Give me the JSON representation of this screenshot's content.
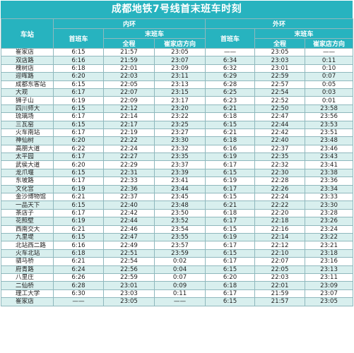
{
  "title": "成都地铁7号线首末班车时刻",
  "header": {
    "station": "车站",
    "inner_loop": "内环",
    "outer_loop": "外环",
    "first_train": "首班车",
    "last_train": "末班车",
    "full_loop": "全程",
    "toward_cuijiadian": "崔家店方向"
  },
  "rows": [
    {
      "station": "崔家店",
      "in_first": "6:15",
      "in_full": "21:57",
      "in_dir": "23:05",
      "out_first": "——",
      "out_full": "23:05",
      "out_dir": "——"
    },
    {
      "station": "双店路",
      "in_first": "6:16",
      "in_full": "21:59",
      "in_dir": "23:07",
      "out_first": "6:34",
      "out_full": "23:03",
      "out_dir": "0:11"
    },
    {
      "station": "槐树店",
      "in_first": "6:18",
      "in_full": "22:01",
      "in_dir": "23:09",
      "out_first": "6:32",
      "out_full": "23:01",
      "out_dir": "0:10"
    },
    {
      "station": "迎晖路",
      "in_first": "6:20",
      "in_full": "22:03",
      "in_dir": "23:11",
      "out_first": "6:29",
      "out_full": "22:59",
      "out_dir": "0:07"
    },
    {
      "station": "成都东客站",
      "in_first": "6:15",
      "in_full": "22:05",
      "in_dir": "23:13",
      "out_first": "6:28",
      "out_full": "22:57",
      "out_dir": "0:05"
    },
    {
      "station": "大观",
      "in_first": "6:17",
      "in_full": "22:07",
      "in_dir": "23:15",
      "out_first": "6:25",
      "out_full": "22:54",
      "out_dir": "0:03"
    },
    {
      "station": "狮子山",
      "in_first": "6:19",
      "in_full": "22:09",
      "in_dir": "23:17",
      "out_first": "6:23",
      "out_full": "22:52",
      "out_dir": "0:01"
    },
    {
      "station": "四川师大",
      "in_first": "6:15",
      "in_full": "22:12",
      "in_dir": "23:20",
      "out_first": "6:21",
      "out_full": "22:50",
      "out_dir": "23:58"
    },
    {
      "station": "琉璃场",
      "in_first": "6:17",
      "in_full": "22:14",
      "in_dir": "23:22",
      "out_first": "6:18",
      "out_full": "22:47",
      "out_dir": "23:56"
    },
    {
      "station": "三瓦窑",
      "in_first": "6:15",
      "in_full": "22:17",
      "in_dir": "23:25",
      "out_first": "6:15",
      "out_full": "22:44",
      "out_dir": "23:53"
    },
    {
      "station": "火车南站",
      "in_first": "6:17",
      "in_full": "22:19",
      "in_dir": "23:27",
      "out_first": "6:21",
      "out_full": "22:42",
      "out_dir": "23:51"
    },
    {
      "station": "神仙树",
      "in_first": "6:20",
      "in_full": "22:22",
      "in_dir": "23:30",
      "out_first": "6:18",
      "out_full": "22:40",
      "out_dir": "23:48"
    },
    {
      "station": "高朋大道",
      "in_first": "6:22",
      "in_full": "22:24",
      "in_dir": "23:32",
      "out_first": "6:16",
      "out_full": "22:37",
      "out_dir": "23:46"
    },
    {
      "station": "太平园",
      "in_first": "6:17",
      "in_full": "22:27",
      "in_dir": "23:35",
      "out_first": "6:19",
      "out_full": "22:35",
      "out_dir": "23:43"
    },
    {
      "station": "武侯大道",
      "in_first": "6:20",
      "in_full": "22:29",
      "in_dir": "23:37",
      "out_first": "6:17",
      "out_full": "22:32",
      "out_dir": "23:41"
    },
    {
      "station": "龙爪堰",
      "in_first": "6:15",
      "in_full": "22:31",
      "in_dir": "23:39",
      "out_first": "6:15",
      "out_full": "22:30",
      "out_dir": "23:38"
    },
    {
      "station": "东坡路",
      "in_first": "6:17",
      "in_full": "22:33",
      "in_dir": "23:41",
      "out_first": "6:19",
      "out_full": "22:28",
      "out_dir": "23:36"
    },
    {
      "station": "文化宫",
      "in_first": "6:19",
      "in_full": "22:36",
      "in_dir": "23:44",
      "out_first": "6:17",
      "out_full": "22:26",
      "out_dir": "23:34"
    },
    {
      "station": "金沙博物馆",
      "in_first": "6:21",
      "in_full": "22:37",
      "in_dir": "23:45",
      "out_first": "6:15",
      "out_full": "22:24",
      "out_dir": "23:33"
    },
    {
      "station": "一品天下",
      "in_first": "6:15",
      "in_full": "22:40",
      "in_dir": "23:48",
      "out_first": "6:21",
      "out_full": "22:22",
      "out_dir": "23:30"
    },
    {
      "station": "茶店子",
      "in_first": "6:17",
      "in_full": "22:42",
      "in_dir": "23:50",
      "out_first": "6:18",
      "out_full": "22:20",
      "out_dir": "23:28"
    },
    {
      "station": "花照壁",
      "in_first": "6:19",
      "in_full": "22:44",
      "in_dir": "23:52",
      "out_first": "6:17",
      "out_full": "22:18",
      "out_dir": "23:26"
    },
    {
      "station": "西南交大",
      "in_first": "6:21",
      "in_full": "22:46",
      "in_dir": "23:54",
      "out_first": "6:15",
      "out_full": "22:16",
      "out_dir": "23:24"
    },
    {
      "station": "九里堤",
      "in_first": "6:15",
      "in_full": "22:47",
      "in_dir": "23:55",
      "out_first": "6:19",
      "out_full": "22:14",
      "out_dir": "23:22"
    },
    {
      "station": "北站西二路",
      "in_first": "6:16",
      "in_full": "22:49",
      "in_dir": "23:57",
      "out_first": "6:17",
      "out_full": "22:12",
      "out_dir": "23:21"
    },
    {
      "station": "火车北站",
      "in_first": "6:18",
      "in_full": "22:51",
      "in_dir": "23:59",
      "out_first": "6:15",
      "out_full": "22:10",
      "out_dir": "23:18"
    },
    {
      "station": "驷马桥",
      "in_first": "6:21",
      "in_full": "22:54",
      "in_dir": "0:02",
      "out_first": "6:17",
      "out_full": "22:07",
      "out_dir": "23:16"
    },
    {
      "station": "府青路",
      "in_first": "6:24",
      "in_full": "22:56",
      "in_dir": "0:04",
      "out_first": "6:15",
      "out_full": "22:05",
      "out_dir": "23:13"
    },
    {
      "station": "八里庄",
      "in_first": "6:26",
      "in_full": "22:59",
      "in_dir": "0:07",
      "out_first": "6:20",
      "out_full": "22:03",
      "out_dir": "23:11"
    },
    {
      "station": "二仙桥",
      "in_first": "6:28",
      "in_full": "23:01",
      "in_dir": "0:09",
      "out_first": "6:18",
      "out_full": "22:01",
      "out_dir": "23:09"
    },
    {
      "station": "理工大学",
      "in_first": "6:30",
      "in_full": "23:03",
      "in_dir": "0:11",
      "out_first": "6:17",
      "out_full": "21:59",
      "out_dir": "23:07"
    },
    {
      "station": "崔家店",
      "in_first": "——",
      "in_full": "23:05",
      "in_dir": "——",
      "out_first": "6:15",
      "out_full": "21:57",
      "out_dir": "23:05"
    }
  ]
}
